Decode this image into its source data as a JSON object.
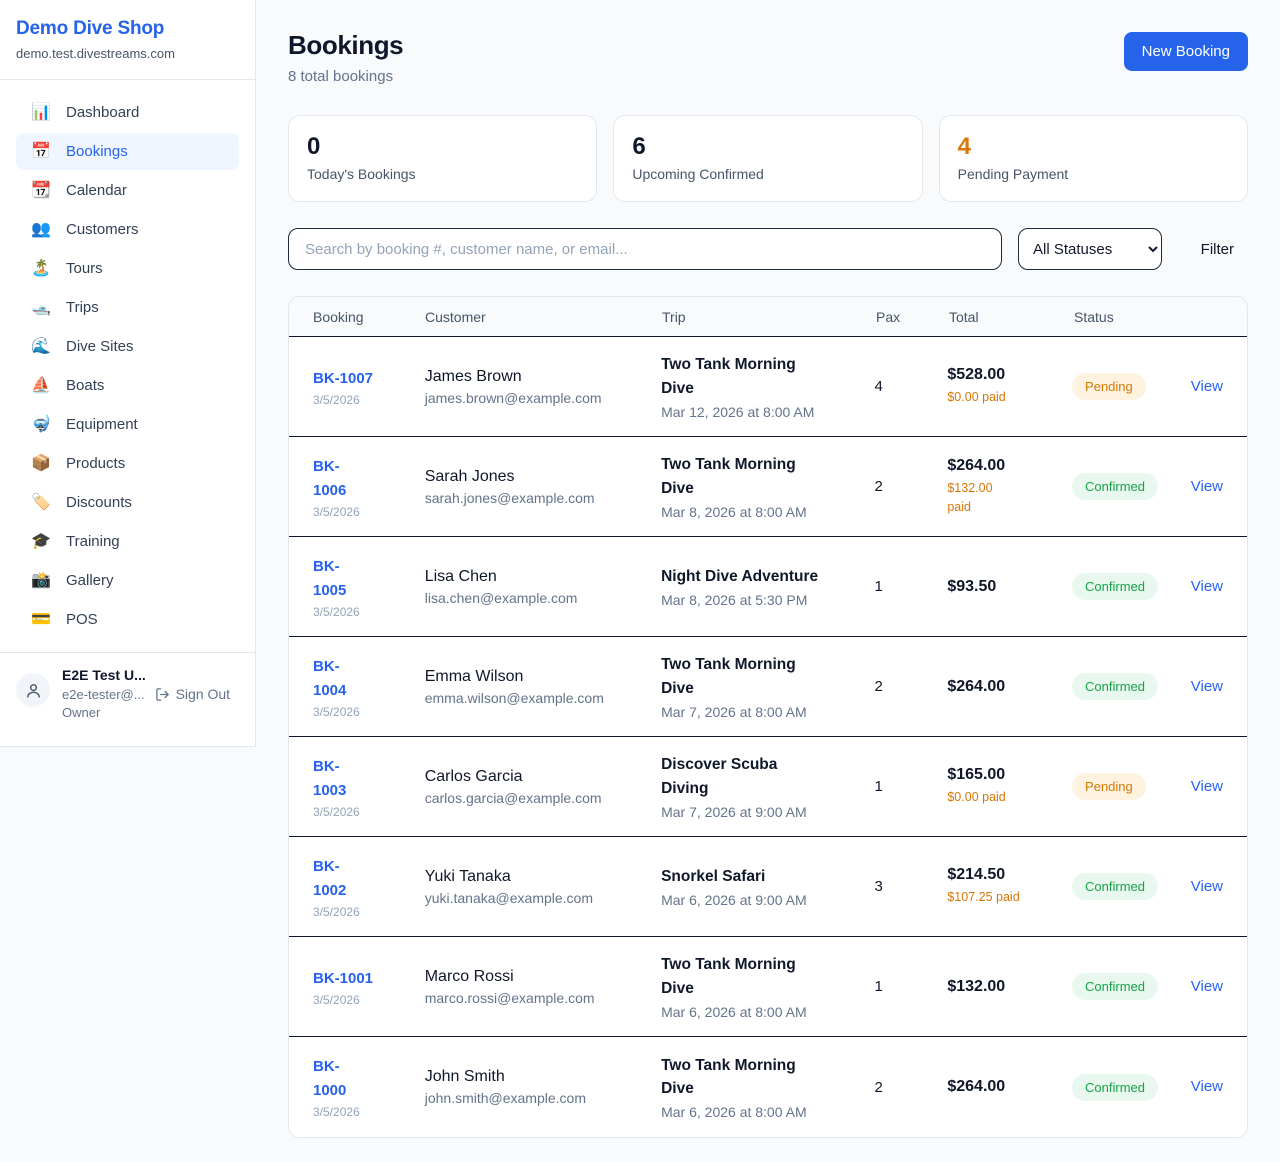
{
  "sidebar": {
    "brand": {
      "name": "Demo Dive Shop",
      "domain": "demo.test.divestreams.com"
    },
    "items": [
      {
        "label": "Dashboard",
        "icon_glyph": "📊",
        "icon_name": "bar-chart-icon",
        "active": false
      },
      {
        "label": "Bookings",
        "icon_glyph": "📅",
        "icon_name": "calendar-icon",
        "active": true
      },
      {
        "label": "Calendar",
        "icon_glyph": "📆",
        "icon_name": "tear-off-calendar-icon",
        "active": false
      },
      {
        "label": "Customers",
        "icon_glyph": "👥",
        "icon_name": "people-icon",
        "active": false
      },
      {
        "label": "Tours",
        "icon_glyph": "🏝️",
        "icon_name": "desert-island-icon",
        "active": false
      },
      {
        "label": "Trips",
        "icon_glyph": "🛥️",
        "icon_name": "motorboat-icon",
        "active": false
      },
      {
        "label": "Dive Sites",
        "icon_glyph": "🌊",
        "icon_name": "wave-icon",
        "active": false
      },
      {
        "label": "Boats",
        "icon_glyph": "⛵",
        "icon_name": "sailboat-icon",
        "active": false
      },
      {
        "label": "Equipment",
        "icon_glyph": "🤿",
        "icon_name": "diving-mask-icon",
        "active": false
      },
      {
        "label": "Products",
        "icon_glyph": "📦",
        "icon_name": "package-icon",
        "active": false
      },
      {
        "label": "Discounts",
        "icon_glyph": "🏷️",
        "icon_name": "label-tag-icon",
        "active": false
      },
      {
        "label": "Training",
        "icon_glyph": "🎓",
        "icon_name": "graduation-cap-icon",
        "active": false
      },
      {
        "label": "Gallery",
        "icon_glyph": "📸",
        "icon_name": "camera-icon",
        "active": false
      },
      {
        "label": "POS",
        "icon_glyph": "💳",
        "icon_name": "credit-card-icon",
        "active": false
      }
    ],
    "user": {
      "name": "E2E Test U...",
      "email": "e2e-tester@...",
      "role": "Owner",
      "sign_out_label": "Sign Out"
    }
  },
  "header": {
    "title": "Bookings",
    "subtitle": "8 total bookings",
    "new_booking_label": "New Booking"
  },
  "stats": [
    {
      "value": "0",
      "label": "Today's Bookings",
      "value_color": "#0f172a"
    },
    {
      "value": "6",
      "label": "Upcoming Confirmed",
      "value_color": "#0f172a"
    },
    {
      "value": "4",
      "label": "Pending Payment",
      "value_color": "#d97706"
    }
  ],
  "filters": {
    "search_placeholder": "Search by booking #, customer name, or email...",
    "status_selected": "All Statuses",
    "filter_label": "Filter"
  },
  "table": {
    "headers": [
      "Booking",
      "Customer",
      "Trip",
      "Pax",
      "Total",
      "Status"
    ],
    "view_label": "View",
    "rows": [
      {
        "number": "BK-1007",
        "date": "3/5/2026",
        "customer": "James Brown",
        "email": "james.brown@example.com",
        "trip": "Two Tank Morning\nDive",
        "trip_time": "Mar 12, 2026 at 8:00 AM",
        "pax": "4",
        "total": "$528.00",
        "paid": "$0.00 paid",
        "status": "Pending"
      },
      {
        "number": "BK-\n1006",
        "date": "3/5/2026",
        "customer": "Sarah Jones",
        "email": "sarah.jones@example.com",
        "trip": "Two Tank Morning\nDive",
        "trip_time": "Mar 8, 2026 at 8:00 AM",
        "pax": "2",
        "total": "$264.00",
        "paid": "$132.00\npaid",
        "status": "Confirmed"
      },
      {
        "number": "BK-\n1005",
        "date": "3/5/2026",
        "customer": "Lisa Chen",
        "email": "lisa.chen@example.com",
        "trip": "Night Dive Adventure",
        "trip_time": "Mar 8, 2026 at 5:30 PM",
        "pax": "1",
        "total": "$93.50",
        "paid": "",
        "status": "Confirmed"
      },
      {
        "number": "BK-\n1004",
        "date": "3/5/2026",
        "customer": "Emma Wilson",
        "email": "emma.wilson@example.com",
        "trip": "Two Tank Morning\nDive",
        "trip_time": "Mar 7, 2026 at 8:00 AM",
        "pax": "2",
        "total": "$264.00",
        "paid": "",
        "status": "Confirmed"
      },
      {
        "number": "BK-\n1003",
        "date": "3/5/2026",
        "customer": "Carlos Garcia",
        "email": "carlos.garcia@example.com",
        "trip": "Discover Scuba\nDiving",
        "trip_time": "Mar 7, 2026 at 9:00 AM",
        "pax": "1",
        "total": "$165.00",
        "paid": "$0.00 paid",
        "status": "Pending"
      },
      {
        "number": "BK-\n1002",
        "date": "3/5/2026",
        "customer": "Yuki Tanaka",
        "email": "yuki.tanaka@example.com",
        "trip": "Snorkel Safari",
        "trip_time": "Mar 6, 2026 at 9:00 AM",
        "pax": "3",
        "total": "$214.50",
        "paid": "$107.25 paid",
        "status": "Confirmed"
      },
      {
        "number": "BK-1001",
        "date": "3/5/2026",
        "customer": "Marco Rossi",
        "email": "marco.rossi@example.com",
        "trip": "Two Tank Morning\nDive",
        "trip_time": "Mar 6, 2026 at 8:00 AM",
        "pax": "1",
        "total": "$132.00",
        "paid": "",
        "status": "Confirmed"
      },
      {
        "number": "BK-\n1000",
        "date": "3/5/2026",
        "customer": "John Smith",
        "email": "john.smith@example.com",
        "trip": "Two Tank Morning\nDive",
        "trip_time": "Mar 6, 2026 at 8:00 AM",
        "pax": "2",
        "total": "$264.00",
        "paid": "",
        "status": "Confirmed"
      }
    ]
  },
  "colors": {
    "accent": "#2563eb",
    "paid_text": "#d97706",
    "status": {
      "Pending": {
        "text": "#d97706",
        "bg": "#fdf3df"
      },
      "Confirmed": {
        "text": "#16a34a",
        "bg": "#e9f8ef"
      }
    }
  }
}
